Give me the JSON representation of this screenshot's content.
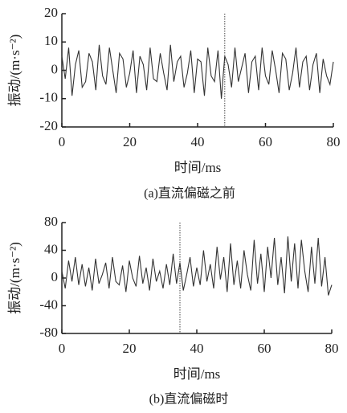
{
  "chart_data": [
    {
      "type": "line",
      "xlabel": "时间/ms",
      "ylabel": "振动/(m·s⁻²)",
      "caption": "(a)直流偏磁之前",
      "x": [
        0,
        1,
        2,
        3,
        4,
        5,
        6,
        7,
        8,
        9,
        10,
        11,
        12,
        13,
        14,
        15,
        16,
        17,
        18,
        19,
        20,
        21,
        22,
        23,
        24,
        25,
        26,
        27,
        28,
        29,
        30,
        31,
        32,
        33,
        34,
        35,
        36,
        37,
        38,
        39,
        40,
        41,
        42,
        43,
        44,
        45,
        46,
        47,
        48,
        49,
        50,
        51,
        52,
        53,
        54,
        55,
        56,
        57,
        58,
        59,
        60,
        61,
        62,
        63,
        64,
        65,
        66,
        67,
        68,
        69,
        70,
        71,
        72,
        73,
        74,
        75,
        76,
        77,
        78,
        79,
        80
      ],
      "series": [
        {
          "color": "#333333",
          "values": [
            5,
            -3,
            8,
            -9,
            2,
            7,
            -6,
            -4,
            6,
            3,
            -7,
            9,
            -2,
            -5,
            8,
            0,
            -8,
            6,
            4,
            -6,
            -1,
            7,
            -8,
            5,
            2,
            -7,
            8,
            -3,
            -4,
            6,
            -1,
            -7,
            9,
            -4,
            3,
            5,
            -6,
            -1,
            7,
            -8,
            4,
            3,
            -9,
            8,
            -2,
            -4,
            7,
            -10,
            5,
            2,
            -6,
            8,
            -4,
            1,
            6,
            -8,
            3,
            5,
            -7,
            8,
            -2,
            -5,
            7,
            0,
            -8,
            6,
            4,
            -7,
            -1,
            8,
            -6,
            3,
            5,
            -7,
            2,
            6,
            -8,
            4,
            -2,
            -5,
            3
          ]
        }
      ],
      "marker_x": 48,
      "xlim": [
        0,
        80
      ],
      "xticks": [
        0,
        20,
        40,
        60,
        80
      ],
      "ylim": [
        -20,
        20
      ],
      "yticks": [
        -20,
        -10,
        0,
        10,
        20
      ]
    },
    {
      "type": "line",
      "xlabel": "时间/ms",
      "ylabel": "振动/(m·s⁻²)",
      "caption": "(b)直流偏磁时",
      "x": [
        0,
        1,
        2,
        3,
        4,
        5,
        6,
        7,
        8,
        9,
        10,
        11,
        12,
        13,
        14,
        15,
        16,
        17,
        18,
        19,
        20,
        21,
        22,
        23,
        24,
        25,
        26,
        27,
        28,
        29,
        30,
        31,
        32,
        33,
        34,
        35,
        36,
        37,
        38,
        39,
        40,
        41,
        42,
        43,
        44,
        45,
        46,
        47,
        48,
        49,
        50,
        51,
        52,
        53,
        54,
        55,
        56,
        57,
        58,
        59,
        60,
        61,
        62,
        63,
        64,
        65,
        66,
        67,
        68,
        69,
        70,
        71,
        72,
        73,
        74,
        75,
        76,
        77,
        78,
        79,
        80
      ],
      "series": [
        {
          "color": "#333333",
          "values": [
            10,
            -15,
            25,
            -5,
            30,
            -10,
            20,
            -12,
            15,
            -18,
            28,
            -8,
            5,
            22,
            -15,
            30,
            -5,
            -10,
            18,
            -20,
            25,
            0,
            -12,
            32,
            -8,
            15,
            -18,
            28,
            -5,
            10,
            -15,
            20,
            -10,
            35,
            -8,
            22,
            -18,
            5,
            30,
            -12,
            15,
            -10,
            40,
            -5,
            20,
            -15,
            45,
            -2,
            30,
            -20,
            50,
            -10,
            25,
            -15,
            40,
            5,
            -18,
            55,
            -8,
            35,
            -20,
            45,
            0,
            58,
            -10,
            30,
            -22,
            60,
            -5,
            50,
            -15,
            55,
            10,
            -20,
            45,
            -8,
            58,
            -12,
            30,
            -25,
            -10
          ]
        }
      ],
      "marker_x": 35,
      "xlim": [
        0,
        80
      ],
      "xticks": [
        0,
        20,
        40,
        60,
        80
      ],
      "ylim": [
        -80,
        80
      ],
      "yticks": [
        -80,
        -40,
        0,
        40,
        80
      ]
    }
  ]
}
